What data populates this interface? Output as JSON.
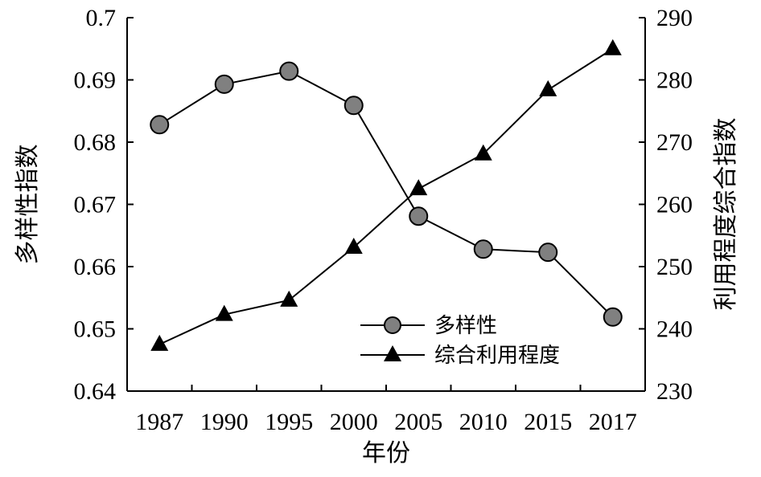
{
  "chart_data": {
    "type": "line",
    "x": [
      "1987",
      "1990",
      "1995",
      "2000",
      "2005",
      "2010",
      "2015",
      "2017"
    ],
    "xlabel": "年份",
    "ylabel_left": "多样性指数",
    "ylabel_right": "利用程度综合指数",
    "ylim_left": [
      0.64,
      0.7
    ],
    "ylim_right": [
      230,
      290
    ],
    "yticks_left": [
      "0.64",
      "0.65",
      "0.66",
      "0.67",
      "0.68",
      "0.69",
      "0.7"
    ],
    "yticks_right": [
      "230",
      "240",
      "250",
      "260",
      "270",
      "280",
      "290"
    ],
    "grid": false,
    "legend_position": "lower-right",
    "series": [
      {
        "name": "多样性",
        "axis": "left",
        "marker": "circle",
        "color": "#808080",
        "values": [
          0.6828,
          0.6893,
          0.6914,
          0.6859,
          0.6681,
          0.6628,
          0.6623,
          0.6519
        ]
      },
      {
        "name": "综合利用程度",
        "axis": "right",
        "marker": "triangle",
        "color": "#000000",
        "values": [
          237.5,
          242.3,
          244.6,
          253.1,
          262.5,
          268.1,
          278.4,
          285.0
        ]
      }
    ]
  }
}
